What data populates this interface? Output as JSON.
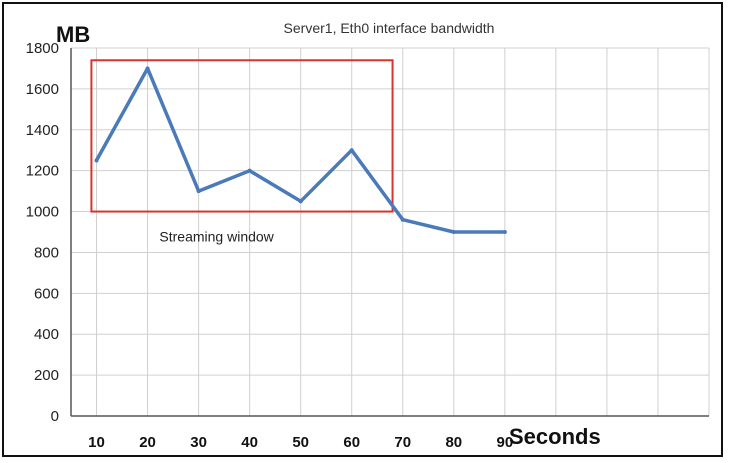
{
  "chart_data": {
    "type": "line",
    "title": "Server1, Eth0 interface bandwidth",
    "xlabel": "Seconds",
    "ylabel": "MB",
    "x": [
      10,
      20,
      30,
      40,
      50,
      60,
      70,
      80,
      90
    ],
    "series": [
      {
        "values": [
          1250,
          1700,
          1100,
          1200,
          1050,
          1300,
          960,
          900,
          900
        ]
      }
    ],
    "x_ticks": [
      "10",
      "20",
      "30",
      "40",
      "50",
      "60",
      "70",
      "80",
      "90"
    ],
    "y_ticks": [
      "0",
      "200",
      "400",
      "600",
      "800",
      "1000",
      "1200",
      "1400",
      "1600",
      "1800"
    ],
    "ylim": [
      0,
      1800
    ],
    "xlim": [
      5,
      130
    ],
    "grid": true,
    "legend": "none",
    "annotation": {
      "label": "Streaming window",
      "x_range": [
        9,
        68
      ],
      "y_range": [
        1000,
        1740
      ]
    },
    "colors": {
      "line": "#4a7ab9",
      "annotation_box": "#d9342c",
      "grid": "#d0d0d0"
    }
  }
}
